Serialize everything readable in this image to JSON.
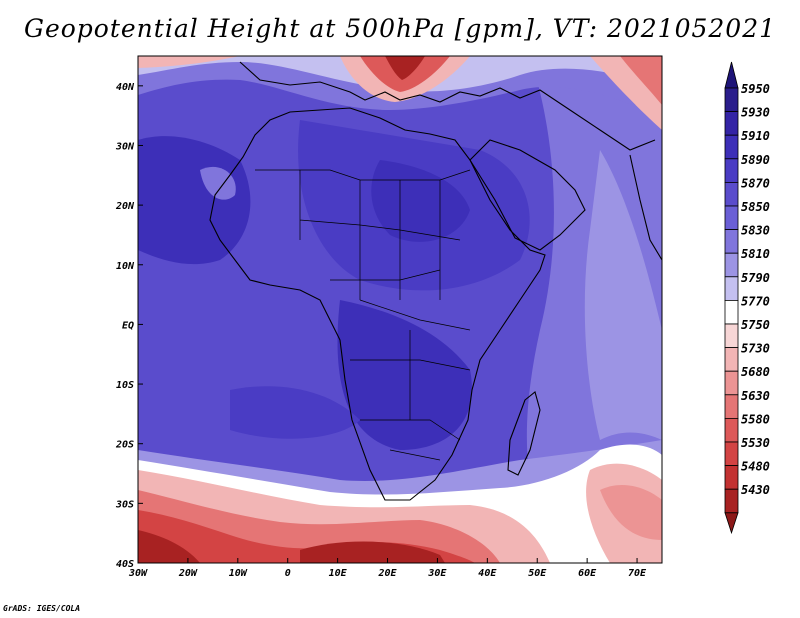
{
  "title": "Geopotential Height at 500hPa [gpm], VT: 2021052021",
  "credit": "GrADS: IGES/COLA",
  "map": {
    "lon_range": [
      -30,
      75
    ],
    "lat_range": [
      -40,
      45
    ],
    "lon_ticks": [
      {
        "value": -30,
        "label": "30W"
      },
      {
        "value": -20,
        "label": "20W"
      },
      {
        "value": -10,
        "label": "10W"
      },
      {
        "value": 0,
        "label": "0"
      },
      {
        "value": 10,
        "label": "10E"
      },
      {
        "value": 20,
        "label": "20E"
      },
      {
        "value": 30,
        "label": "30E"
      },
      {
        "value": 40,
        "label": "40E"
      },
      {
        "value": 50,
        "label": "50E"
      },
      {
        "value": 60,
        "label": "60E"
      },
      {
        "value": 70,
        "label": "70E"
      }
    ],
    "lat_ticks": [
      {
        "value": 40,
        "label": "40N"
      },
      {
        "value": 30,
        "label": "30N"
      },
      {
        "value": 20,
        "label": "20N"
      },
      {
        "value": 10,
        "label": "10N"
      },
      {
        "value": 0,
        "label": "EQ"
      },
      {
        "value": -10,
        "label": "10S"
      },
      {
        "value": -20,
        "label": "20S"
      },
      {
        "value": -30,
        "label": "30S"
      },
      {
        "value": -40,
        "label": "40S"
      }
    ]
  },
  "colorbar": {
    "levels": [
      {
        "label": "5950",
        "color": "#2a1d8c"
      },
      {
        "label": "5930",
        "color": "#3424a6"
      },
      {
        "label": "5910",
        "color": "#3d2fb8"
      },
      {
        "label": "5890",
        "color": "#4a3cc4"
      },
      {
        "label": "5870",
        "color": "#5a4ccc"
      },
      {
        "label": "5850",
        "color": "#6a5fd6"
      },
      {
        "label": "5830",
        "color": "#8075dc"
      },
      {
        "label": "5810",
        "color": "#9c94e4"
      },
      {
        "label": "5790",
        "color": "#c4c0f0"
      },
      {
        "label": "5770",
        "color": "#ffffff"
      },
      {
        "label": "5750",
        "color": "#f7d6d6"
      },
      {
        "label": "5730",
        "color": "#f2b5b5"
      },
      {
        "label": "5680",
        "color": "#ec9494"
      },
      {
        "label": "5630",
        "color": "#e57575"
      },
      {
        "label": "5580",
        "color": "#dd5959"
      },
      {
        "label": "5530",
        "color": "#d34444"
      },
      {
        "label": "5480",
        "color": "#c33232"
      },
      {
        "label": "5430",
        "color": "#a82222"
      }
    ],
    "top_arrow_color": "#1e1478",
    "bottom_arrow_color": "#8c1818"
  }
}
